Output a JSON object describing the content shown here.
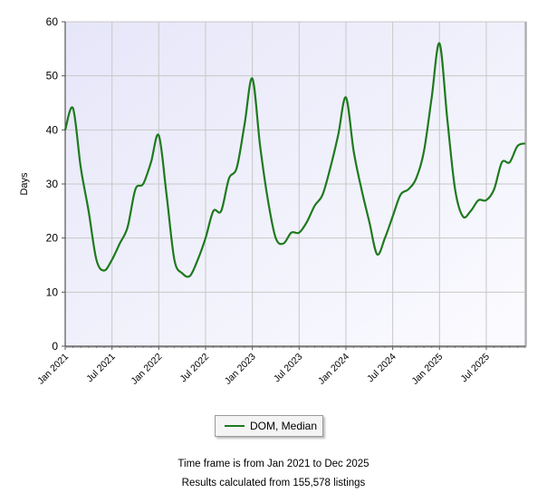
{
  "chart_data": {
    "type": "line",
    "title": "",
    "xlabel": "",
    "ylabel": "Days",
    "ylim": [
      0,
      60
    ],
    "yticks": [
      "0",
      "10",
      "20",
      "30",
      "40",
      "50",
      "60"
    ],
    "x_range": [
      "2021-01",
      "2025-12"
    ],
    "xticks": [
      {
        "label": "Jan 2021",
        "date": "2021-01"
      },
      {
        "label": "Jul 2021",
        "date": "2021-07"
      },
      {
        "label": "Jan 2022",
        "date": "2022-01"
      },
      {
        "label": "Jul 2022",
        "date": "2022-07"
      },
      {
        "label": "Jan 2023",
        "date": "2023-01"
      },
      {
        "label": "Jul 2023",
        "date": "2023-07"
      },
      {
        "label": "Jan 2024",
        "date": "2024-01"
      },
      {
        "label": "Jul 2024",
        "date": "2024-07"
      },
      {
        "label": "Jan 2025",
        "date": "2025-01"
      },
      {
        "label": "Jul 2025",
        "date": "2025-07"
      }
    ],
    "grid": true,
    "legend_position": "bottom-center",
    "series": [
      {
        "name": "DOM, Median",
        "color": "#1e7a1e",
        "x": [
          "2021-01",
          "2021-02",
          "2021-03",
          "2021-04",
          "2021-05",
          "2021-06",
          "2021-07",
          "2021-08",
          "2021-09",
          "2021-10",
          "2021-11",
          "2021-12",
          "2022-01",
          "2022-02",
          "2022-03",
          "2022-04",
          "2022-05",
          "2022-06",
          "2022-07",
          "2022-08",
          "2022-09",
          "2022-10",
          "2022-11",
          "2022-12",
          "2023-01",
          "2023-02",
          "2023-03",
          "2023-04",
          "2023-05",
          "2023-06",
          "2023-07",
          "2023-08",
          "2023-09",
          "2023-10",
          "2023-11",
          "2023-12",
          "2024-01",
          "2024-02",
          "2024-03",
          "2024-04",
          "2024-05",
          "2024-06",
          "2024-07",
          "2024-08",
          "2024-09",
          "2024-10",
          "2024-11",
          "2024-12",
          "2025-01",
          "2025-02",
          "2025-03",
          "2025-04",
          "2025-05",
          "2025-06",
          "2025-07",
          "2025-08",
          "2025-09",
          "2025-10",
          "2025-11",
          "2025-12"
        ],
        "values": [
          40,
          44,
          33,
          25,
          16,
          14,
          16,
          19,
          22,
          29,
          30,
          34,
          39,
          28,
          16,
          13.5,
          13,
          16,
          20,
          25,
          25,
          31,
          33,
          41,
          49.5,
          37,
          27,
          20,
          19,
          21,
          21,
          23,
          26,
          28,
          33,
          39,
          46,
          36,
          29,
          23,
          17,
          20,
          24,
          28,
          29,
          31,
          36,
          46,
          56,
          42,
          29,
          24,
          25,
          27,
          27,
          29,
          34,
          34,
          37,
          37.5
        ]
      }
    ]
  },
  "footer": {
    "timeframe": "Time frame is from Jan 2021 to Dec 2025",
    "results": "Results calculated from 155,578 listings"
  }
}
